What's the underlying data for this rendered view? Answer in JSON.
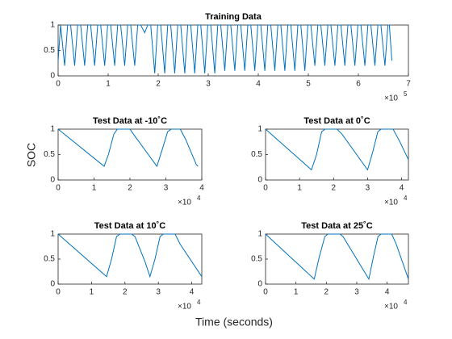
{
  "labels": {
    "x": "Time (seconds)",
    "y": "SOC"
  },
  "chart_data": [
    {
      "type": "line",
      "title": "Training Data",
      "color": "#0072bd",
      "x_exponent_base": "×10",
      "x_exponent": "5",
      "xlim": [
        0,
        700000
      ],
      "ylim": [
        0,
        1
      ],
      "xticks": [
        {
          "value": 0,
          "label": "0"
        },
        {
          "value": 100000,
          "label": "1"
        },
        {
          "value": 200000,
          "label": "2"
        },
        {
          "value": 300000,
          "label": "3"
        },
        {
          "value": 400000,
          "label": "4"
        },
        {
          "value": 500000,
          "label": "5"
        },
        {
          "value": 600000,
          "label": "6"
        },
        {
          "value": 700000,
          "label": "7"
        }
      ],
      "yticks": [
        0,
        0.5,
        1
      ],
      "x": [
        0,
        5000,
        13000,
        19000,
        25000,
        33000,
        39000,
        45000,
        53000,
        59000,
        65000,
        73000,
        79000,
        85000,
        93000,
        99000,
        105000,
        113000,
        119000,
        125000,
        133000,
        139000,
        145000,
        153000,
        159000,
        165000,
        173000,
        179000,
        185000,
        193000,
        199000,
        205000,
        213000,
        219000,
        225000,
        233000,
        239000,
        245000,
        253000,
        259000,
        265000,
        273000,
        279000,
        285000,
        293000,
        299000,
        305000,
        313000,
        319000,
        325000,
        333000,
        339000,
        345000,
        353000,
        359000,
        365000,
        373000,
        379000,
        385000,
        393000,
        399000,
        405000,
        413000,
        419000,
        425000,
        433000,
        439000,
        445000,
        453000,
        459000,
        465000,
        473000,
        479000,
        485000,
        493000,
        499000,
        505000,
        513000,
        519000,
        525000,
        533000,
        539000,
        545000,
        553000,
        559000,
        565000,
        573000,
        579000,
        585000,
        593000,
        599000,
        605000,
        613000,
        619000,
        625000,
        633000,
        639000,
        645000,
        653000,
        659000,
        662000,
        667000
      ],
      "values": [
        0.3,
        1,
        0.2,
        1,
        1,
        0.2,
        1,
        1,
        0.2,
        1,
        1,
        0.2,
        1,
        1,
        0.2,
        1,
        1,
        0.2,
        1,
        1,
        0.2,
        1,
        1,
        0.2,
        1,
        1,
        0.85,
        1,
        1,
        0.05,
        1,
        1,
        0.05,
        1,
        1,
        0.05,
        1,
        1,
        0.05,
        1,
        1,
        0.05,
        1,
        1,
        0.05,
        1,
        1,
        0.05,
        1,
        1,
        0.1,
        1,
        1,
        0.1,
        1,
        1,
        0.1,
        1,
        1,
        0.1,
        1,
        1,
        0.1,
        1,
        1,
        0.1,
        1,
        1,
        0.1,
        1,
        1,
        0.1,
        1,
        1,
        0.1,
        1,
        1,
        0.2,
        1,
        1,
        0.2,
        1,
        1,
        0.2,
        1,
        1,
        0.2,
        1,
        1,
        0.2,
        1,
        1,
        0.2,
        1,
        1,
        0.2,
        1,
        1,
        0.2,
        1,
        1,
        0.3
      ]
    },
    {
      "type": "line",
      "title": "Test Data at -10˚C",
      "color": "#0072bd",
      "x_exponent_base": "×10",
      "x_exponent": "4",
      "xlim": [
        0,
        40000
      ],
      "ylim": [
        0,
        1
      ],
      "xticks": [
        {
          "value": 0,
          "label": "0"
        },
        {
          "value": 10000,
          "label": "1"
        },
        {
          "value": 20000,
          "label": "2"
        },
        {
          "value": 30000,
          "label": "3"
        },
        {
          "value": 40000,
          "label": "4"
        }
      ],
      "yticks": [
        0,
        0.5,
        1
      ],
      "x": [
        0,
        12800,
        14000,
        15500,
        16500,
        20000,
        21000,
        27500,
        29000,
        30500,
        31500,
        34000,
        35500,
        38500,
        39000
      ],
      "values": [
        1,
        0.27,
        0.5,
        0.9,
        1,
        1,
        0.9,
        0.27,
        0.6,
        0.95,
        1,
        1,
        0.8,
        0.3,
        0.27
      ]
    },
    {
      "type": "line",
      "title": "Test Data at 0˚C",
      "color": "#0072bd",
      "x_exponent_base": "×10",
      "x_exponent": "4",
      "xlim": [
        0,
        42000
      ],
      "ylim": [
        0,
        1
      ],
      "xticks": [
        {
          "value": 0,
          "label": "0"
        },
        {
          "value": 10000,
          "label": "1"
        },
        {
          "value": 20000,
          "label": "2"
        },
        {
          "value": 30000,
          "label": "3"
        },
        {
          "value": 40000,
          "label": "4"
        }
      ],
      "yticks": [
        0,
        0.5,
        1
      ],
      "x": [
        0,
        13500,
        15000,
        16500,
        17500,
        21000,
        22500,
        30000,
        31500,
        33000,
        34000,
        37500,
        39500,
        42000
      ],
      "values": [
        1,
        0.2,
        0.5,
        0.95,
        1,
        1,
        0.9,
        0.2,
        0.55,
        0.95,
        1,
        1,
        0.75,
        0.4
      ]
    },
    {
      "type": "line",
      "title": "Test Data at 10˚C",
      "color": "#0072bd",
      "x_exponent_base": "×10",
      "x_exponent": "4",
      "xlim": [
        0,
        43000
      ],
      "ylim": [
        0,
        1
      ],
      "xticks": [
        {
          "value": 0,
          "label": "0"
        },
        {
          "value": 10000,
          "label": "1"
        },
        {
          "value": 20000,
          "label": "2"
        },
        {
          "value": 30000,
          "label": "3"
        },
        {
          "value": 40000,
          "label": "4"
        }
      ],
      "yticks": [
        0,
        0.5,
        1
      ],
      "x": [
        0,
        14500,
        16000,
        17500,
        18500,
        22000,
        23000,
        26000,
        27500,
        29000,
        30500,
        31500,
        35000,
        36500,
        43000
      ],
      "values": [
        1,
        0.15,
        0.5,
        0.95,
        1,
        1,
        0.95,
        0.45,
        0.15,
        0.5,
        0.95,
        1,
        1,
        0.8,
        0.15
      ]
    },
    {
      "type": "line",
      "title": "Test Data at 25˚C",
      "color": "#0072bd",
      "x_exponent_base": "×10",
      "x_exponent": "4",
      "xlim": [
        0,
        47000
      ],
      "ylim": [
        0,
        1
      ],
      "xticks": [
        {
          "value": 0,
          "label": "0"
        },
        {
          "value": 10000,
          "label": "1"
        },
        {
          "value": 20000,
          "label": "2"
        },
        {
          "value": 30000,
          "label": "3"
        },
        {
          "value": 40000,
          "label": "4"
        }
      ],
      "yticks": [
        0,
        0.5,
        1
      ],
      "x": [
        0,
        16000,
        17500,
        19500,
        20500,
        24500,
        25500,
        34000,
        35500,
        37000,
        38000,
        41500,
        43000,
        47000
      ],
      "values": [
        1,
        0.1,
        0.5,
        0.95,
        1,
        1,
        0.95,
        0.1,
        0.55,
        0.95,
        1,
        1,
        0.8,
        0.1
      ]
    }
  ]
}
